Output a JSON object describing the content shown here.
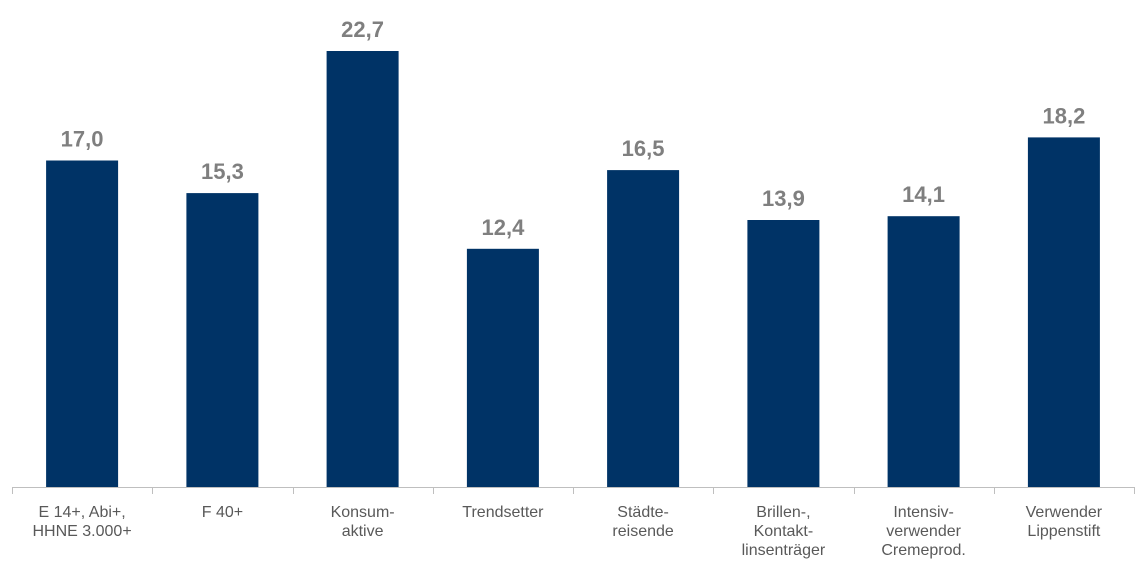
{
  "colors": {
    "bar": "#003366",
    "value_label": "#7f7f7f",
    "axis": "#bfbfbf",
    "category_label": "#595959"
  },
  "chart_data": {
    "type": "bar",
    "title": "",
    "xlabel": "",
    "ylabel": "",
    "ylim": [
      0,
      25
    ],
    "grid": false,
    "legend": "none",
    "categories": [
      [
        "E 14+, Abi+,",
        "HHNE 3.000+"
      ],
      [
        "F 40+"
      ],
      [
        "Konsum-",
        "aktive"
      ],
      [
        "Trendsetter"
      ],
      [
        "Städte-",
        "reisende"
      ],
      [
        "Brillen-,",
        "Kontakt-",
        "linsenträger"
      ],
      [
        "Intensiv-",
        "verwender",
        "Cremeprod."
      ],
      [
        "Verwender",
        "Lippenstift"
      ]
    ],
    "values": [
      17.0,
      15.3,
      22.7,
      12.4,
      16.5,
      13.9,
      14.1,
      18.2
    ],
    "value_labels": [
      "17,0",
      "15,3",
      "22,7",
      "12,4",
      "16,5",
      "13,9",
      "14,1",
      "18,2"
    ]
  }
}
